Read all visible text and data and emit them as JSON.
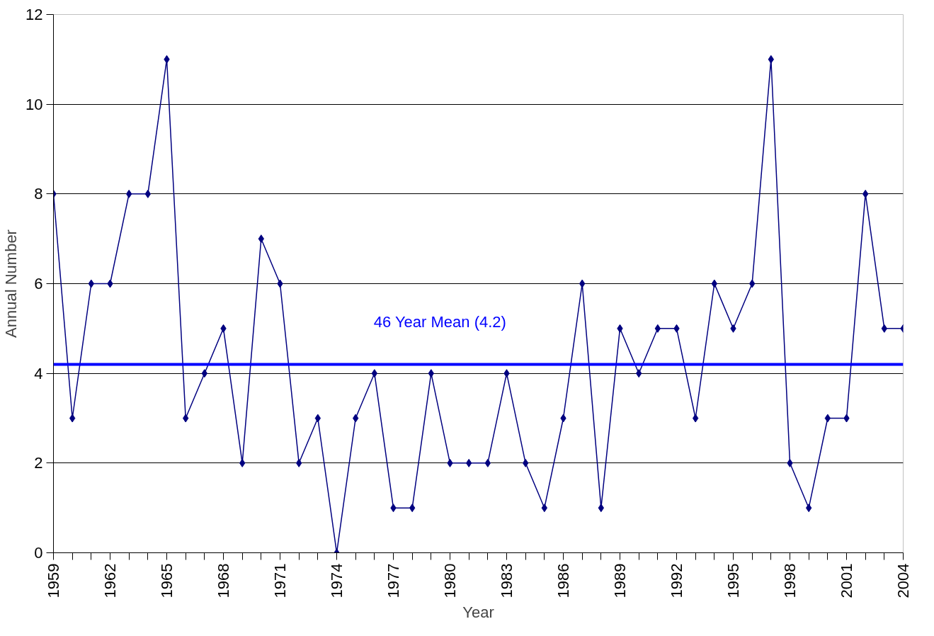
{
  "chart_data": {
    "type": "line",
    "xlabel": "Year",
    "ylabel": "Annual Number",
    "x": [
      1959,
      1960,
      1961,
      1962,
      1963,
      1964,
      1965,
      1966,
      1967,
      1968,
      1969,
      1970,
      1971,
      1972,
      1973,
      1974,
      1975,
      1976,
      1977,
      1978,
      1979,
      1980,
      1981,
      1982,
      1983,
      1984,
      1985,
      1986,
      1987,
      1988,
      1989,
      1990,
      1991,
      1992,
      1993,
      1994,
      1995,
      1996,
      1997,
      1998,
      1999,
      2000,
      2001,
      2002,
      2003,
      2004
    ],
    "series": [
      {
        "color": "#000080",
        "values": [
          8,
          3,
          6,
          6,
          8,
          8,
          11,
          3,
          4,
          5,
          2,
          7,
          6,
          2,
          3,
          0,
          3,
          4,
          1,
          1,
          4,
          2,
          2,
          2,
          4,
          2,
          1,
          3,
          6,
          1,
          5,
          4,
          5,
          5,
          3,
          6,
          5,
          6,
          11,
          2,
          1,
          3,
          3,
          8,
          5,
          5
        ]
      }
    ],
    "xlim": [
      1959,
      2004
    ],
    "xticks": [
      1959,
      {
        "value": 1960,
        "label": null
      },
      {
        "value": 1961,
        "label": null
      },
      1962,
      {
        "value": 1963,
        "label": null
      },
      {
        "value": 1964,
        "label": null
      },
      1965,
      {
        "value": 1966,
        "label": null
      },
      {
        "value": 1967,
        "label": null
      },
      1968,
      {
        "value": 1969,
        "label": null
      },
      {
        "value": 1970,
        "label": null
      },
      1971,
      {
        "value": 1972,
        "label": null
      },
      {
        "value": 1973,
        "label": null
      },
      1974,
      {
        "value": 1975,
        "label": null
      },
      {
        "value": 1976,
        "label": null
      },
      1977,
      {
        "value": 1978,
        "label": null
      },
      {
        "value": 1979,
        "label": null
      },
      1980,
      {
        "value": 1981,
        "label": null
      },
      {
        "value": 1982,
        "label": null
      },
      1983,
      {
        "value": 1984,
        "label": null
      },
      {
        "value": 1985,
        "label": null
      },
      1986,
      {
        "value": 1987,
        "label": null
      },
      {
        "value": 1988,
        "label": null
      },
      1989,
      {
        "value": 1990,
        "label": null
      },
      {
        "value": 1991,
        "label": null
      },
      1992,
      {
        "value": 1993,
        "label": null
      },
      {
        "value": 1994,
        "label": null
      },
      1995,
      {
        "value": 1996,
        "label": null
      },
      {
        "value": 1997,
        "label": null
      },
      1998,
      {
        "value": 1999,
        "label": null
      },
      {
        "value": 2000,
        "label": null
      },
      2001,
      {
        "value": 2002,
        "label": null
      },
      {
        "value": 2003,
        "label": null
      },
      2004
    ],
    "ylim": [
      0,
      12
    ],
    "yticks": [
      0,
      2,
      4,
      6,
      8,
      10,
      12
    ],
    "grid": "y",
    "marker": "diamond",
    "line_style": "solid",
    "ref_lines": [
      {
        "axis": "y",
        "value": 4.2,
        "label": "46 Year Mean (4.2)",
        "color": "#0000ff"
      }
    ]
  }
}
